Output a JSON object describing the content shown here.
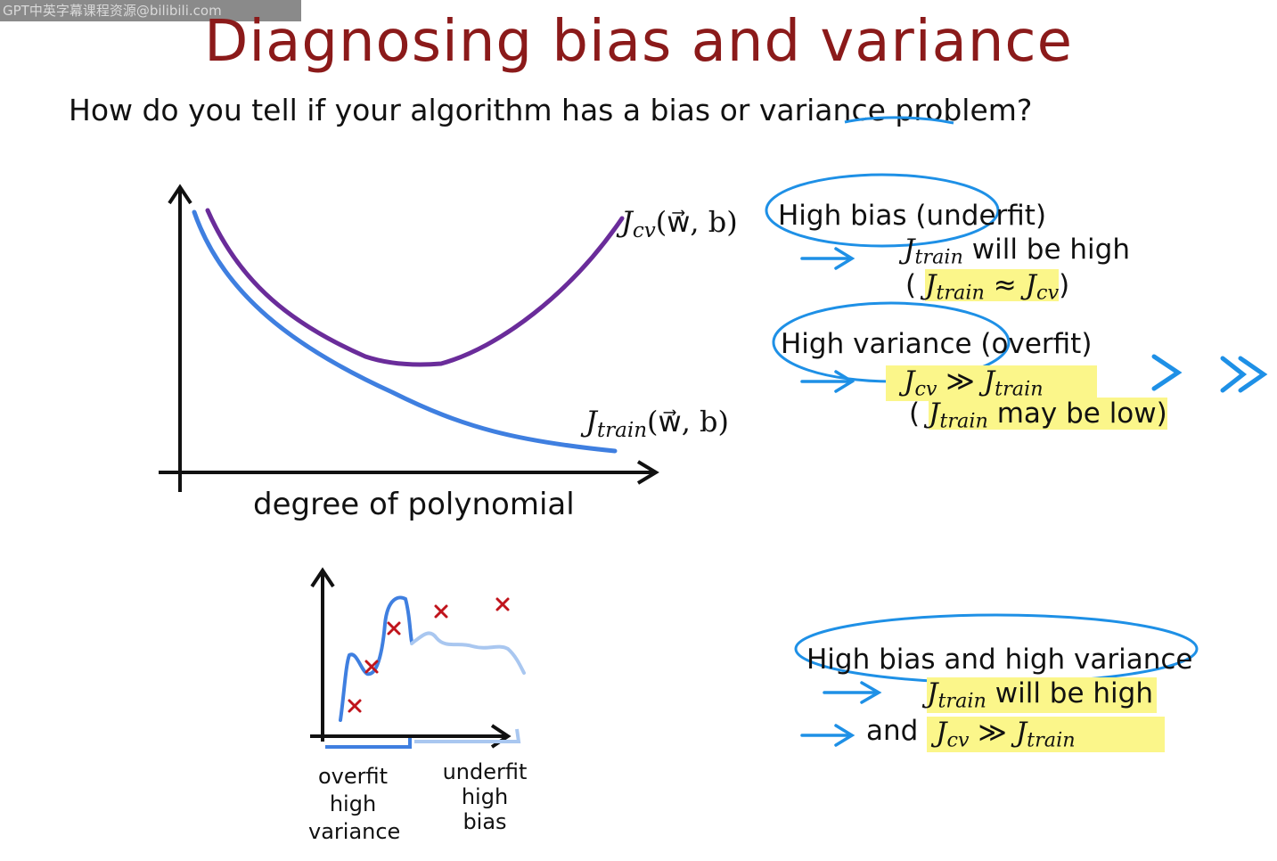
{
  "watermark": "GPT中英字幕课程资源@bilibili.com",
  "title": "Diagnosing bias and variance",
  "subtitle": "How do you tell if your algorithm has a bias or variance problem?",
  "main_plot": {
    "xlabel": "degree of polynomial",
    "jcv_label": {
      "J": "J",
      "sub": "cv",
      "args": "(w⃗, b)"
    },
    "jtrain_label": {
      "J": "J",
      "sub": "train",
      "args": "(w⃗, b)"
    }
  },
  "high_bias": {
    "heading": "High bias (underfit)",
    "line1_J": "J",
    "line1_sub": "train",
    "line1_text": " will be high",
    "line2_open": "( ",
    "line2_J1": "J",
    "line2_sub1": "train",
    "line2_approx": " ≈ ",
    "line2_J2": "J",
    "line2_sub2": "cv",
    "line2_close": ")"
  },
  "high_variance": {
    "heading": "High variance (overfit)",
    "line1_J1": "J",
    "line1_sub1": "cv",
    "line1_gg": " ≫ ",
    "line1_J2": "J",
    "line1_sub2": "train",
    "line2_open": "( ",
    "line2_J": "J",
    "line2_sub": "train",
    "line2_text": " may be low)",
    "gt_symbol": ">",
    "gg_symbol": "≫"
  },
  "both": {
    "heading": "High bias and high variance",
    "line1_J": "J",
    "line1_sub": "train",
    "line1_text": " will be high",
    "line2_and": "and",
    "line2_J1": "J",
    "line2_sub1": "cv",
    "line2_gg": " ≫ ",
    "line2_J2": "J",
    "line2_sub2": "train"
  },
  "small_plot": {
    "left_label": [
      "overfit",
      "high",
      "variance"
    ],
    "right_label": [
      "underfit",
      "high",
      "bias"
    ]
  },
  "colors": {
    "title": "#8b1a1a",
    "jcv_curve": "#6a2c9a",
    "jtrain_curve": "#3f7fe0",
    "annotation": "#1e90e6",
    "highlight": "#fbf68a",
    "marker": "#c0141c"
  }
}
